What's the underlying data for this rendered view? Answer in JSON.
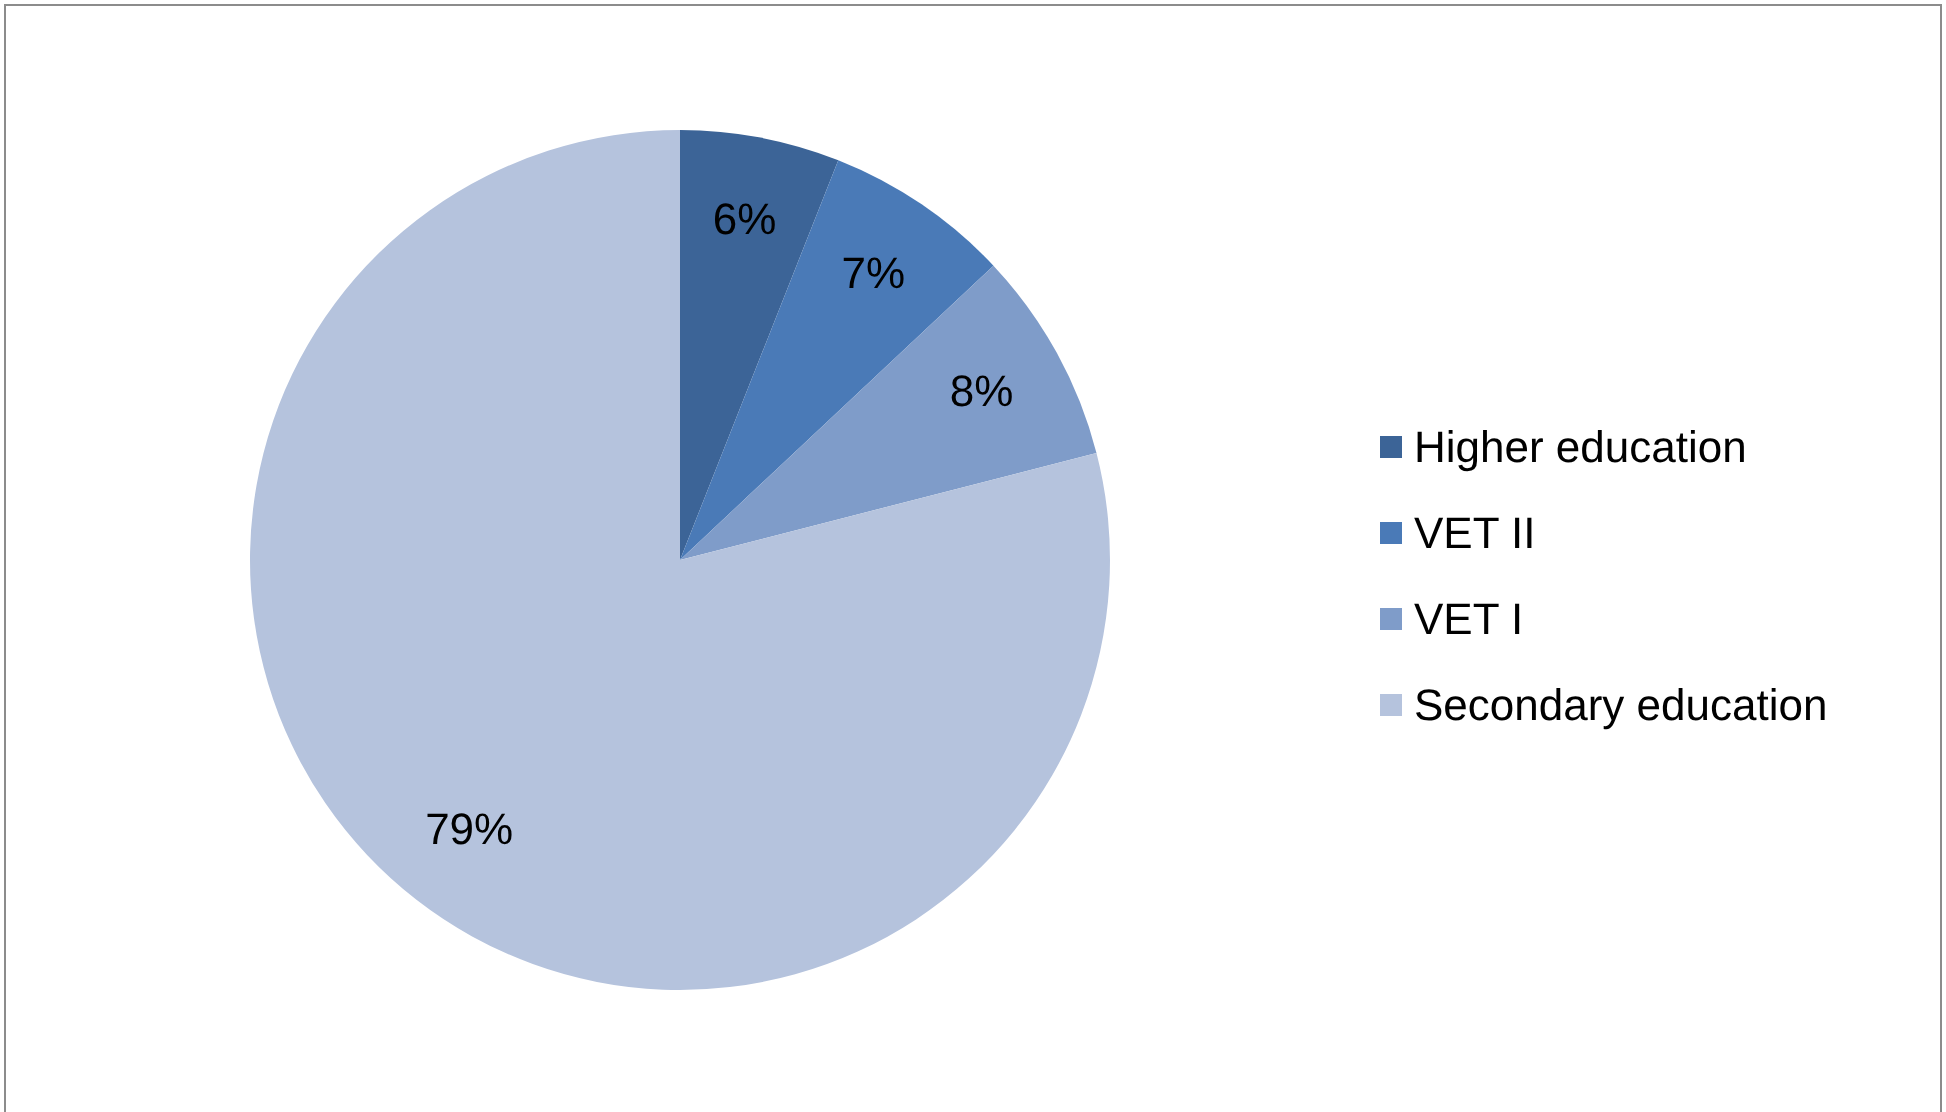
{
  "chart_data": {
    "type": "pie",
    "categories": [
      "Higher education",
      "VET II",
      "VET I",
      "Secondary education"
    ],
    "values": [
      6,
      7,
      8,
      79
    ],
    "colors": [
      "#3c6497",
      "#4a7ab7",
      "#7f9cc9",
      "#b5c3dd"
    ],
    "value_labels": [
      "6%",
      "7%",
      "8%",
      "79%"
    ],
    "legend": "right"
  }
}
